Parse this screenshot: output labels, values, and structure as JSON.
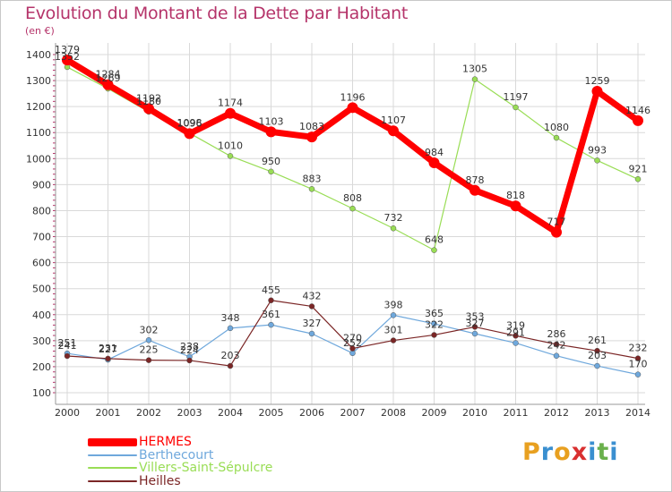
{
  "header": {
    "title": "Evolution du Montant de la Dette par Habitant",
    "unit": "(en €)"
  },
  "colors": {
    "title": "#b5346a",
    "grid": "#d9d9d9",
    "axis_text": "#333333",
    "value_text": "#333333"
  },
  "chart_data": {
    "type": "line",
    "title": "Evolution du Montant de la Dette par Habitant",
    "ylabel": "(en €)",
    "x": [
      "2000",
      "2001",
      "2002",
      "2003",
      "2004",
      "2005",
      "2006",
      "2007",
      "2008",
      "2009",
      "2010",
      "2011",
      "2012",
      "2013",
      "2014"
    ],
    "ylim": [
      100,
      1400
    ],
    "yticks": [
      100,
      200,
      300,
      400,
      500,
      600,
      700,
      800,
      900,
      1000,
      1100,
      1200,
      1300,
      1400
    ],
    "grid": true,
    "legend_position": "bottom-left",
    "series": [
      {
        "name": "HERMES",
        "color": "#ff0000",
        "values": [
          1379,
          1284,
          1192,
          1096,
          1174,
          1103,
          1083,
          1196,
          1107,
          984,
          878,
          818,
          717,
          1259,
          1146
        ]
      },
      {
        "name": "Berthecourt",
        "color": "#6fa8dc",
        "values": [
          251,
          227,
          302,
          238,
          348,
          361,
          327,
          252,
          398,
          365,
          327,
          291,
          242,
          203,
          170
        ]
      },
      {
        "name": "Villers-Saint-Sépulcre",
        "color": "#99dd55",
        "values": [
          1352,
          1269,
          1180,
          1098,
          1010,
          950,
          883,
          808,
          732,
          648,
          1305,
          1197,
          1080,
          993,
          921
        ]
      },
      {
        "name": "Heilles",
        "color": "#7b2626",
        "values": [
          241,
          231,
          225,
          224,
          203,
          455,
          432,
          270,
          301,
          322,
          353,
          319,
          286,
          261,
          232
        ]
      }
    ],
    "value_labels": [
      [
        "1379",
        "1284",
        "1192",
        "1096",
        "1174",
        "1103",
        "1083",
        "1196",
        "1107",
        "984",
        "878",
        "818",
        "717",
        "1259",
        "1146"
      ],
      [
        "251",
        "227",
        "302",
        "238",
        "348",
        "361",
        "327",
        "252",
        "398",
        "365",
        "327",
        "291",
        "242",
        "203",
        "170"
      ],
      [
        "1352",
        "1269",
        "1180",
        "1098",
        "1010",
        "950",
        "883",
        "808",
        "732",
        "648",
        "1305",
        "1197",
        "1080",
        "993",
        "921"
      ],
      [
        "241",
        "231",
        "225",
        "224",
        "203",
        "455",
        "432",
        "270",
        "301",
        "322",
        "353",
        "319",
        "286",
        "261",
        "232"
      ]
    ]
  },
  "legend": [
    {
      "label": "HERMES",
      "color": "#ff0000"
    },
    {
      "label": "Berthecourt",
      "color": "#6fa8dc"
    },
    {
      "label": "Villers-Saint-Sépulcre",
      "color": "#99dd55"
    },
    {
      "label": "Heilles",
      "color": "#7b2626"
    }
  ],
  "logo": {
    "letters": [
      "P",
      "r",
      "o",
      "x",
      "i",
      "t",
      "i"
    ],
    "colors": [
      "#e8a020",
      "#3a8fd0",
      "#e8a020",
      "#d93030",
      "#3a8fd0",
      "#6ab04c",
      "#3a8fd0"
    ]
  }
}
